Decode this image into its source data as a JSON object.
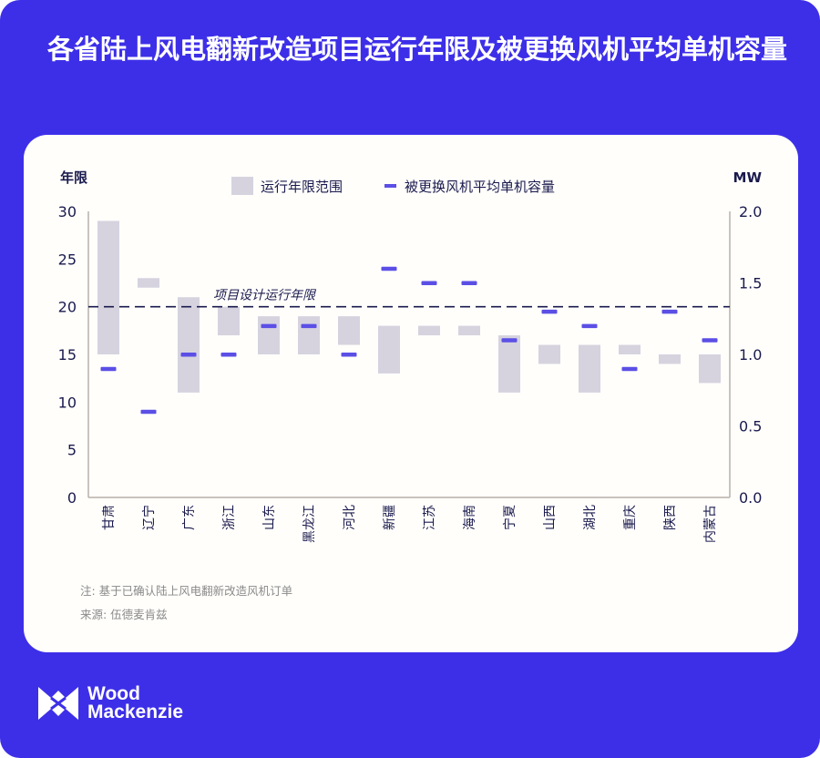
{
  "title": "各省陆上风电翻新改造项目运行年限及被更换风机平均单机容量",
  "chart_data": {
    "type": "bar",
    "title": "各省陆上风电翻新改造项目运行年限及被更换风机平均单机容量",
    "ylabel": "年限",
    "y2label": "MW",
    "ylim": [
      0,
      30
    ],
    "y2lim": [
      0,
      2.0
    ],
    "yticks": [
      "0",
      "5",
      "10",
      "15",
      "20",
      "25",
      "30"
    ],
    "y2ticks": [
      "0.0",
      "0.5",
      "1.0",
      "1.5",
      "2.0"
    ],
    "legend": {
      "range": "运行年限范围",
      "capacity": "被更换风机平均单机容量",
      "position": "top"
    },
    "reference": {
      "value": 20,
      "label": "项目设计运行年限"
    },
    "categories": [
      "甘肃",
      "辽宁",
      "广东",
      "浙江",
      "山东",
      "黑龙江",
      "河北",
      "新疆",
      "江苏",
      "海南",
      "宁夏",
      "山西",
      "湖北",
      "重庆",
      "陕西",
      "内蒙古"
    ],
    "series": [
      {
        "name": "运行年限范围",
        "low": [
          15,
          22,
          11,
          17,
          15,
          15,
          16,
          13,
          17,
          17,
          11,
          14,
          11,
          15,
          14,
          12
        ],
        "high": [
          29,
          23,
          21,
          20,
          19,
          19,
          19,
          18,
          18,
          18,
          17,
          16,
          16,
          16,
          15,
          15
        ]
      },
      {
        "name": "被更换风机平均单机容量",
        "axis": "right",
        "values": [
          0.9,
          0.6,
          1.0,
          1.0,
          1.2,
          1.2,
          1.0,
          1.6,
          1.5,
          1.5,
          1.1,
          1.3,
          1.2,
          0.9,
          1.3,
          1.1
        ]
      }
    ],
    "colors": {
      "bar": "#d6d3df",
      "marker": "#5b4fe6",
      "axis": "#b8b0aa",
      "text": "#1a1a4e"
    }
  },
  "notes": {
    "note": "注: 基于已确认陆上风电翻新改造风机订单",
    "source": "来源: 伍德麦肯兹"
  },
  "brand": {
    "line1": "Wood",
    "line2": "Mackenzie"
  }
}
